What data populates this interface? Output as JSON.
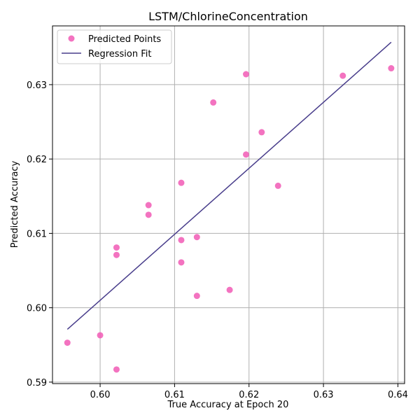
{
  "chart_data": {
    "type": "scatter",
    "title": "LSTM/ChlorineConcentration",
    "xlabel": "True Accuracy at Epoch 20",
    "ylabel": "Predicted Accuracy",
    "xlim": [
      0.5936,
      0.6409
    ],
    "ylim": [
      0.5898,
      0.6379
    ],
    "xticks": [
      0.6,
      0.61,
      0.62,
      0.63,
      0.64
    ],
    "yticks": [
      0.59,
      0.6,
      0.61,
      0.62,
      0.63
    ],
    "xtick_labels": [
      "0.60",
      "0.61",
      "0.62",
      "0.63",
      "0.64"
    ],
    "ytick_labels": [
      "0.59",
      "0.60",
      "0.61",
      "0.62",
      "0.63"
    ],
    "grid": true,
    "legend_position": "top-left",
    "series": [
      {
        "name": "Predicted Points",
        "kind": "scatter",
        "color": "#f15bb5",
        "points": [
          {
            "x": 0.5956,
            "y": 0.5953
          },
          {
            "x": 0.6,
            "y": 0.5963
          },
          {
            "x": 0.6022,
            "y": 0.5917
          },
          {
            "x": 0.6022,
            "y": 0.6081
          },
          {
            "x": 0.6022,
            "y": 0.6071
          },
          {
            "x": 0.6065,
            "y": 0.6138
          },
          {
            "x": 0.6065,
            "y": 0.6125
          },
          {
            "x": 0.6109,
            "y": 0.6168
          },
          {
            "x": 0.6109,
            "y": 0.6091
          },
          {
            "x": 0.6109,
            "y": 0.6061
          },
          {
            "x": 0.613,
            "y": 0.6095
          },
          {
            "x": 0.613,
            "y": 0.6016
          },
          {
            "x": 0.6152,
            "y": 0.6276
          },
          {
            "x": 0.6174,
            "y": 0.6024
          },
          {
            "x": 0.6196,
            "y": 0.6314
          },
          {
            "x": 0.6196,
            "y": 0.6206
          },
          {
            "x": 0.6217,
            "y": 0.6236
          },
          {
            "x": 0.6239,
            "y": 0.6164
          },
          {
            "x": 0.6326,
            "y": 0.6312
          },
          {
            "x": 0.6391,
            "y": 0.6322
          }
        ]
      },
      {
        "name": "Regression Fit",
        "kind": "line",
        "color": "#483d8b",
        "points": [
          {
            "x": 0.5956,
            "y": 0.5971
          },
          {
            "x": 0.6391,
            "y": 0.6357
          }
        ]
      }
    ]
  }
}
